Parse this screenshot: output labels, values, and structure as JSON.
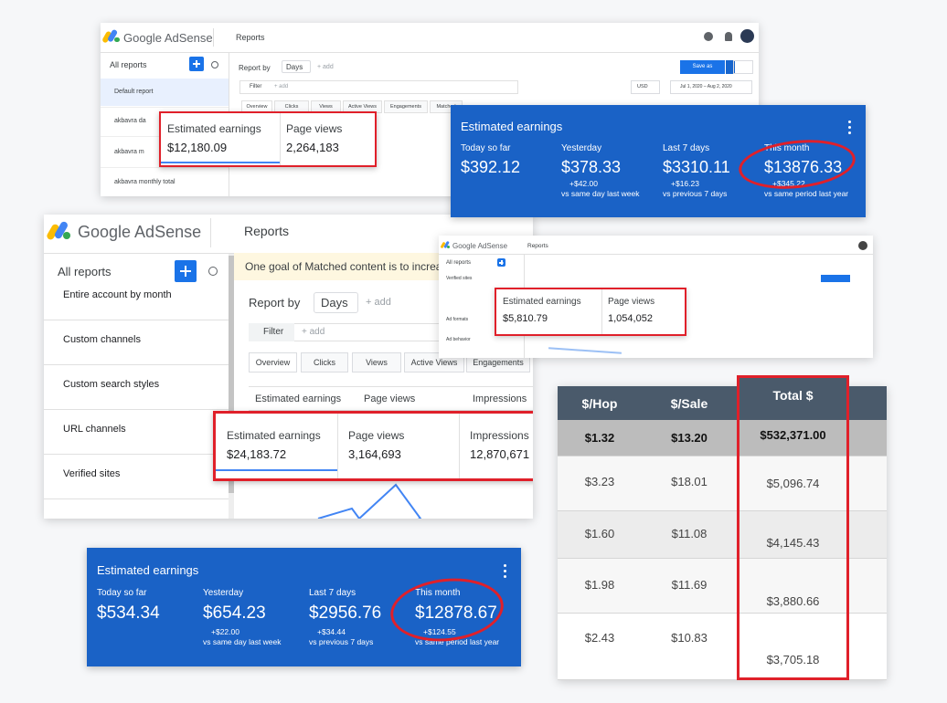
{
  "adsense_top": {
    "brand": "Google AdSense",
    "section": "Reports",
    "sidebar_title": "All reports",
    "sidebar_items": [
      "Default report",
      "akbavra da",
      "akbavra m",
      "akbavra monthly total"
    ],
    "report_by": "Report by",
    "days": "Days",
    "add": "+ add",
    "filter": "Filter",
    "filter_add": "+ add",
    "save_as": "Save as",
    "currency": "USD",
    "date_range": "Jul 1, 2020 – Aug 2, 2020",
    "tabs": [
      "Overview",
      "Clicks",
      "Views",
      "Active Views",
      "Engagements",
      "Matched"
    ],
    "highlight": [
      {
        "label": "Estimated earnings",
        "value": "$12,180.09"
      },
      {
        "label": "Page views",
        "value": "2,264,183"
      }
    ]
  },
  "card_top": {
    "title": "Estimated earnings",
    "items": [
      {
        "label": "Today so far",
        "value": "$392.12"
      },
      {
        "label": "Yesterday",
        "value": "$378.33",
        "delta": "+$42.00",
        "note": "vs same day last week"
      },
      {
        "label": "Last 7 days",
        "value": "$3310.11",
        "delta": "+$16.23",
        "note": "vs previous 7 days"
      },
      {
        "label": "This month",
        "value": "$13876.33",
        "delta": "+$345.22",
        "note": "vs same period last year"
      }
    ]
  },
  "adsense_main": {
    "brand": "Google AdSense",
    "section": "Reports",
    "sidebar_title": "All reports",
    "sidebar_items": [
      "Entire account by month",
      "Custom channels",
      "Custom search styles",
      "URL channels",
      "Verified sites"
    ],
    "banner": "One goal of Matched content is to increase user a",
    "report_by": "Report by",
    "days": "Days",
    "add": "+ add",
    "filter": "Filter",
    "filter_add": "+ add",
    "tabs": [
      "Overview",
      "Clicks",
      "Views",
      "Active Views",
      "Engagements"
    ],
    "columns": [
      "Estimated earnings",
      "Page views",
      "Impressions"
    ],
    "highlight": [
      {
        "label": "Estimated earnings",
        "value": "$24,183.72"
      },
      {
        "label": "Page views",
        "value": "3,164,693"
      },
      {
        "label": "Impressions",
        "value": "12,870,671"
      }
    ]
  },
  "adsense_small": {
    "brand": "Google AdSense",
    "section": "Reports",
    "sidebar_title": "All reports",
    "sidebar_items": [
      "Verified sites",
      "Ad formats",
      "Ad behavior"
    ],
    "highlight": [
      {
        "label": "Estimated earnings",
        "value": "$5,810.79"
      },
      {
        "label": "Page views",
        "value": "1,054,052"
      }
    ]
  },
  "table": {
    "columns": [
      "$/Hop",
      "$/Sale",
      "Total $"
    ],
    "rows": [
      [
        "$1.32",
        "$13.20",
        "$532,371.00"
      ],
      [
        "$3.23",
        "$18.01",
        "$5,096.74"
      ],
      [
        "$1.60",
        "$11.08",
        "$4,145.43"
      ],
      [
        "$1.98",
        "$11.69",
        "$3,880.66"
      ],
      [
        "$2.43",
        "$10.83",
        "$3,705.18"
      ]
    ]
  },
  "card_bottom": {
    "title": "Estimated earnings",
    "items": [
      {
        "label": "Today so far",
        "value": "$534.34"
      },
      {
        "label": "Yesterday",
        "value": "$654.23",
        "delta": "+$22.00",
        "note": "vs same day last week"
      },
      {
        "label": "Last 7 days",
        "value": "$2956.76",
        "delta": "+$34.44",
        "note": "vs previous 7 days"
      },
      {
        "label": "This month",
        "value": "$12878.67",
        "delta": "+$124.55",
        "note": "vs same period last year"
      }
    ]
  }
}
